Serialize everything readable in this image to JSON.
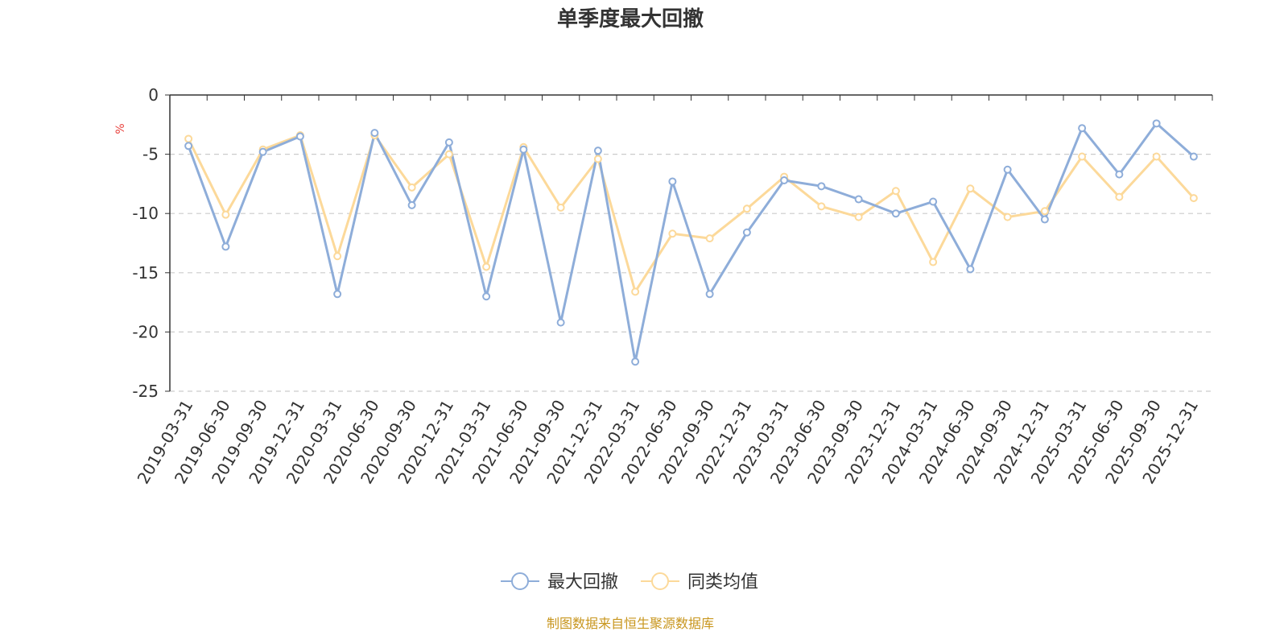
{
  "chart_data": {
    "type": "line",
    "title": "单季度最大回撤",
    "ylabel": "%",
    "ylim": [
      -25,
      0
    ],
    "yticks": [
      0,
      -5,
      -10,
      -15,
      -20,
      -25
    ],
    "grid": true,
    "legend_position": "bottom",
    "categories": [
      "2019-03-31",
      "2019-06-30",
      "2019-09-30",
      "2019-12-31",
      "2020-03-31",
      "2020-06-30",
      "2020-09-30",
      "2020-12-31",
      "2021-03-31",
      "2021-06-30",
      "2021-09-30",
      "2021-12-31",
      "2022-03-31",
      "2022-06-30",
      "2022-09-30",
      "2022-12-31",
      "2023-03-31",
      "2023-06-30",
      "2023-09-30",
      "2023-12-31",
      "2024-03-31",
      "2024-06-30",
      "2024-09-30",
      "2024-12-31",
      "2025-03-31",
      "2025-06-30",
      "2025-09-30",
      "2025-12-31"
    ],
    "series": [
      {
        "name": "最大回撤",
        "color": "#8eadd9",
        "values": [
          -4.3,
          -12.8,
          -4.8,
          -3.5,
          -16.8,
          -3.2,
          -9.3,
          -4.0,
          -17.0,
          -4.6,
          -19.2,
          -4.7,
          -22.5,
          -7.3,
          -16.8,
          -11.6,
          -7.2,
          -7.7,
          -8.8,
          -10.0,
          -9.0,
          -14.7,
          -6.3,
          -10.5,
          -2.8,
          -6.7,
          -2.4,
          -5.2
        ]
      },
      {
        "name": "同类均值",
        "color": "#fcd99a",
        "values": [
          -3.7,
          -10.1,
          -4.6,
          -3.4,
          -13.6,
          -3.4,
          -7.8,
          -5.0,
          -14.5,
          -4.4,
          -9.5,
          -5.4,
          -16.6,
          -11.7,
          -12.1,
          -9.6,
          -6.9,
          -9.4,
          -10.3,
          -8.1,
          -14.1,
          -7.9,
          -10.3,
          -9.8,
          -5.2,
          -8.6,
          -5.2,
          -8.7
        ]
      }
    ]
  },
  "footer": {
    "source": "制图数据来自恒生聚源数据库"
  }
}
